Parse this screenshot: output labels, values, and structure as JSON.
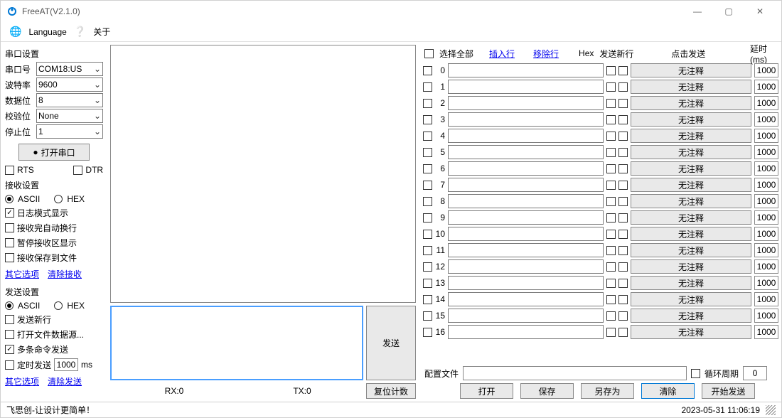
{
  "window": {
    "title": "FreeAT(V2.1.0)"
  },
  "menubar": {
    "language": "Language",
    "about": "关于"
  },
  "serial": {
    "section": "串口设置",
    "port_label": "串口号",
    "port_value": "COM18:US",
    "baud_label": "波特率",
    "baud_value": "9600",
    "data_label": "数据位",
    "data_value": "8",
    "parity_label": "校验位",
    "parity_value": "None",
    "stop_label": "停止位",
    "stop_value": "1",
    "open_btn": "打开串口",
    "rts": "RTS",
    "dtr": "DTR"
  },
  "recv": {
    "section": "接收设置",
    "ascii": "ASCII",
    "hex": "HEX",
    "log_mode": "日志模式显示",
    "auto_wrap": "接收完自动换行",
    "pause_display": "暂停接收区显示",
    "save_to_file": "接收保存到文件",
    "other_opts": "其它选项",
    "clear_recv": "清除接收"
  },
  "send": {
    "section": "发送设置",
    "ascii": "ASCII",
    "hex": "HEX",
    "send_newline": "发送新行",
    "open_file": "打开文件数据源...",
    "multi_cmd": "多条命令发送",
    "timed_send": "定时发送",
    "timed_value": "1000",
    "timed_unit": "ms",
    "other_opts": "其它选项",
    "clear_send": "清除发送"
  },
  "mid": {
    "send_btn": "发送",
    "rx_label": "RX:0",
    "tx_label": "TX:0",
    "reset_btn": "复位计数"
  },
  "right": {
    "select_all": "选择全部",
    "insert_row": "插入行",
    "remove_row": "移除行",
    "hex_label": "Hex",
    "send_newline": "发送新行",
    "click_send": "点击发送",
    "delay_label": "延时(ms)",
    "default_btn_label": "无注释",
    "default_delay": "1000",
    "row_count": 17,
    "config_label": "配置文件",
    "cycle_label": "循环周期",
    "cycle_value": "0",
    "btns": {
      "open": "打开",
      "save": "保存",
      "save_as": "另存为",
      "clear": "清除",
      "start": "开始发送"
    }
  },
  "status": {
    "left": "飞思创-让设计更简单！",
    "datetime": "2023-05-31 11:06:19"
  }
}
